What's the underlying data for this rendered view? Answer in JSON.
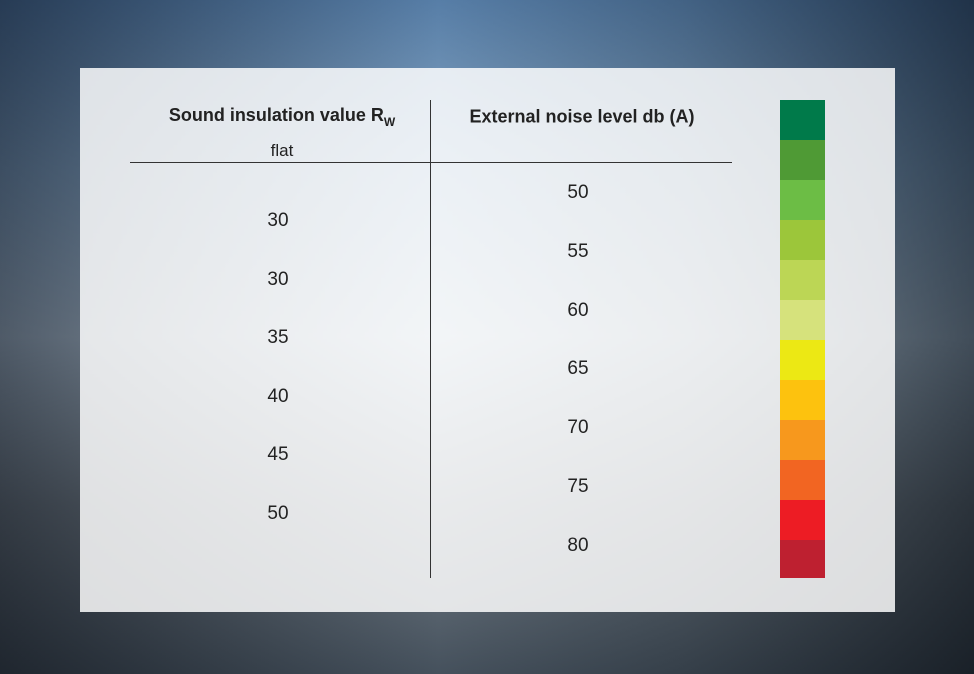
{
  "header": {
    "col1": {
      "text": "Sound insulation value R",
      "subscript": "W",
      "subtitle": "flat"
    },
    "col2": {
      "text": "External noise level db (A)"
    }
  },
  "insulation_values": [
    "30",
    "30",
    "35",
    "40",
    "45",
    "50"
  ],
  "noise_levels": [
    "50",
    "55",
    "60",
    "65",
    "70",
    "75",
    "80"
  ]
}
